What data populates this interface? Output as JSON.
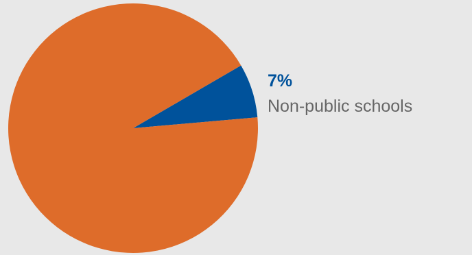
{
  "chart_data": {
    "type": "pie",
    "title": "",
    "slices": [
      {
        "label": "Non-public schools",
        "value": 7,
        "display": "7%",
        "color": "#00529b"
      },
      {
        "label": "",
        "value": 93,
        "display": "",
        "color": "#de6c2a"
      }
    ],
    "label_colors": {
      "value": "#00529b",
      "name": "#666666"
    }
  }
}
